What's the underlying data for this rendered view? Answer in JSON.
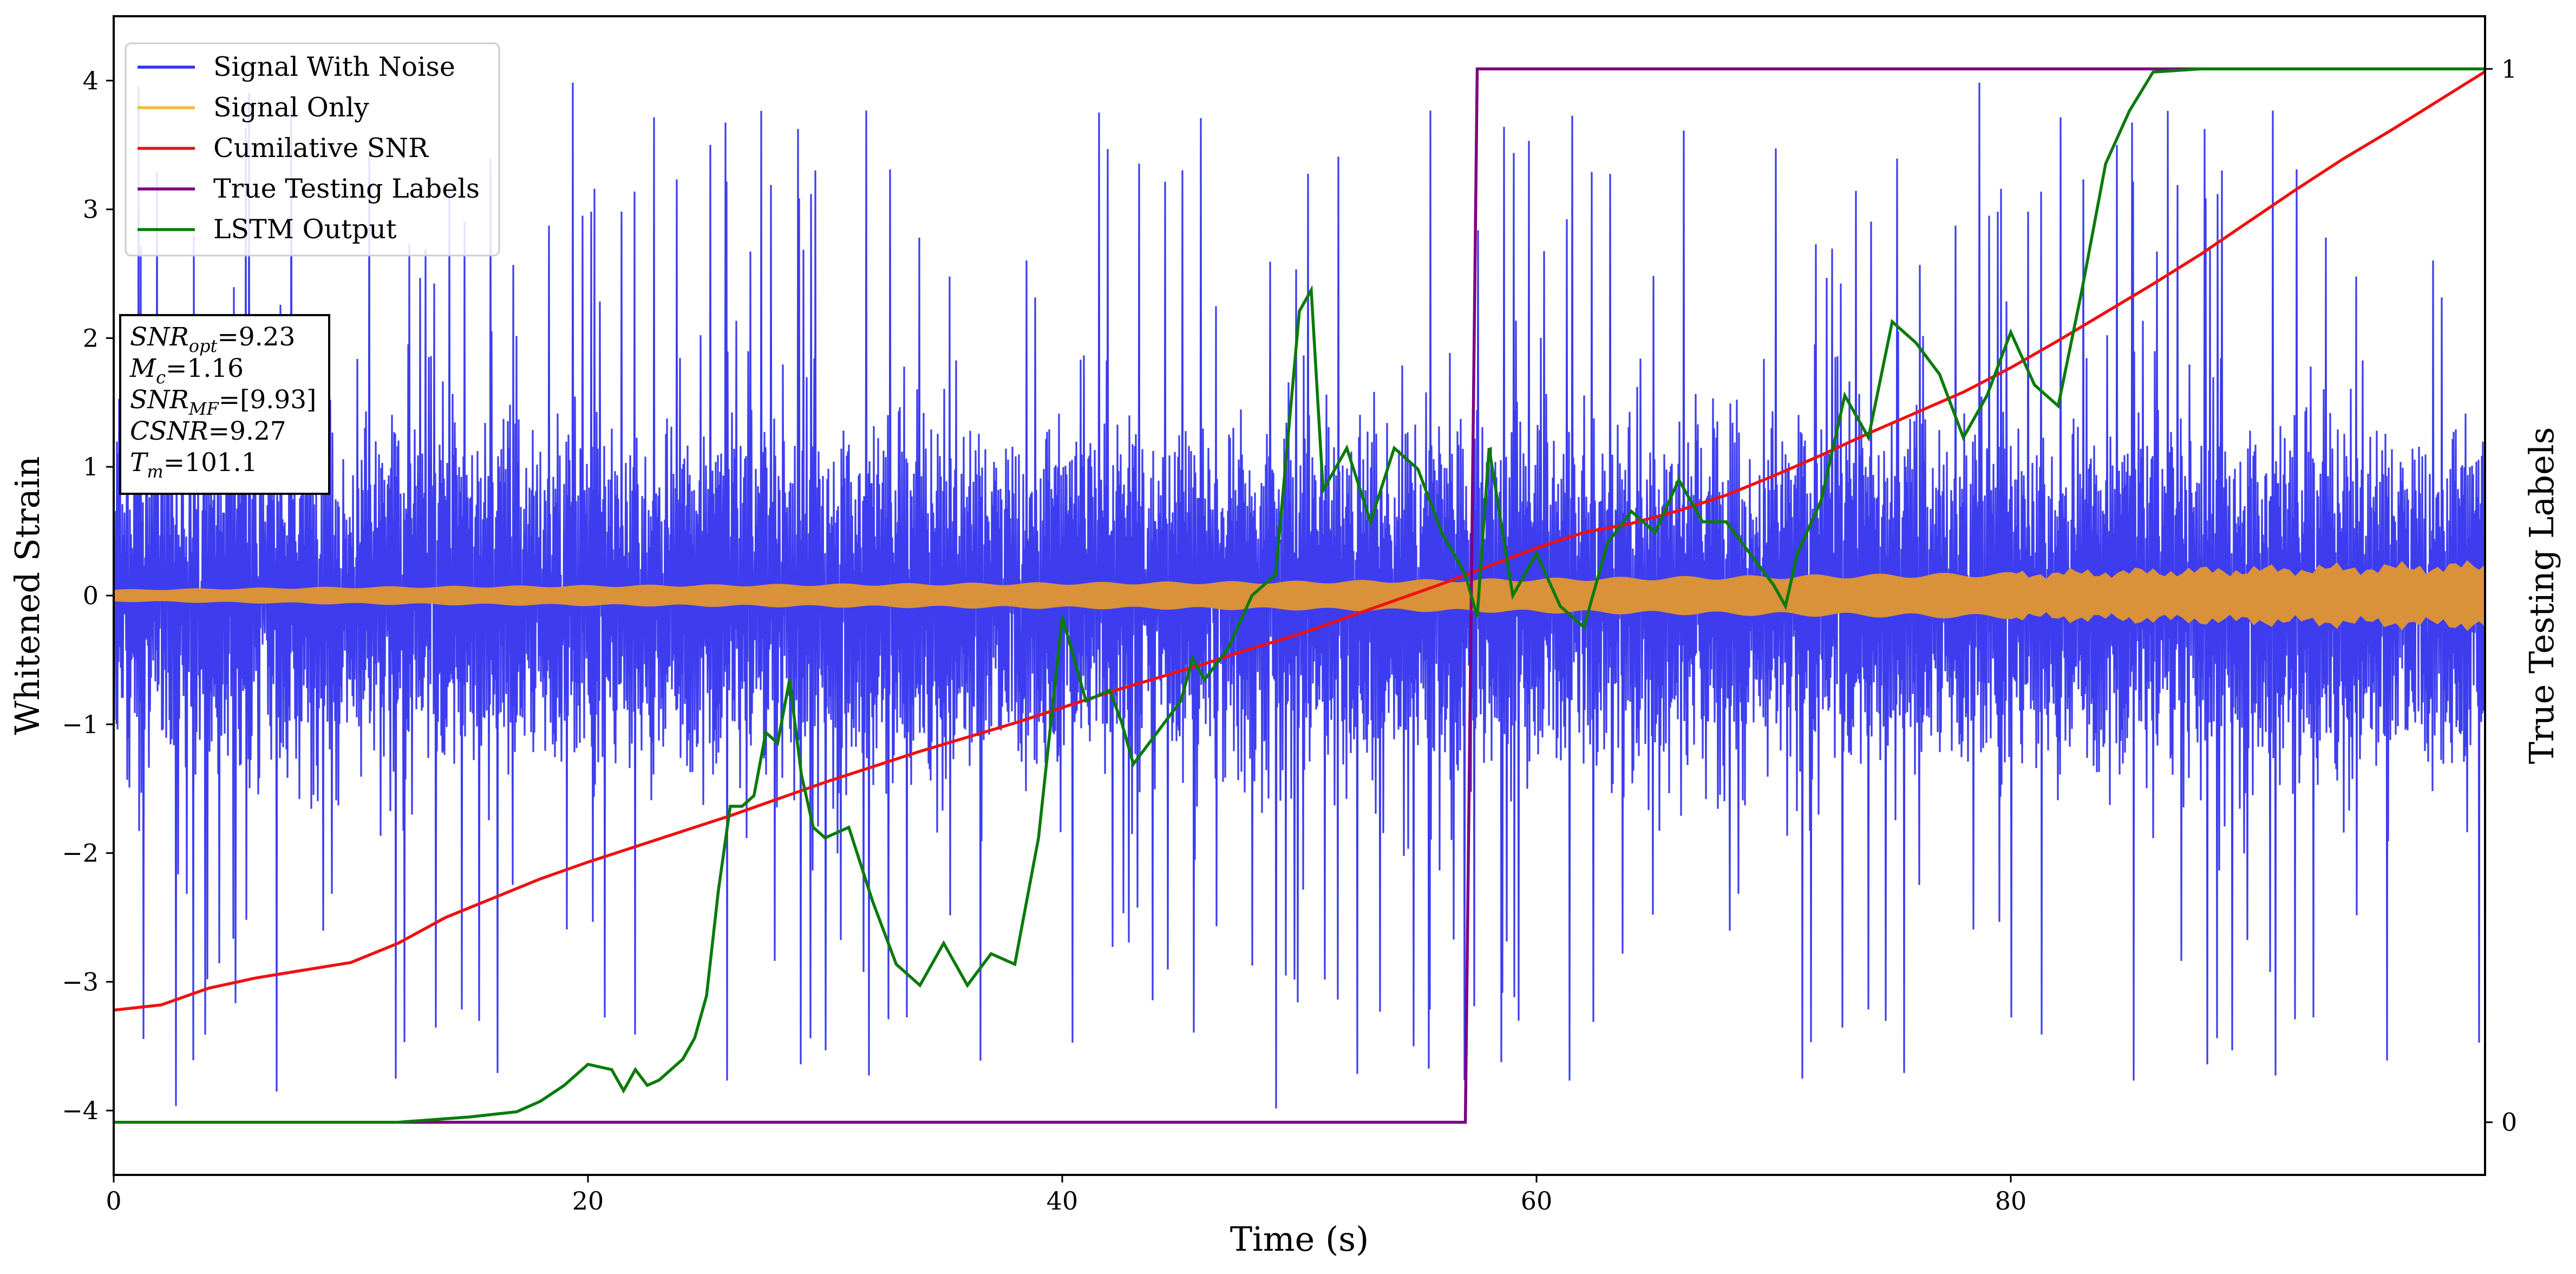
{
  "chart_data": {
    "type": "line",
    "xlabel": "Time (s)",
    "ylabel": "Whitened Strain",
    "y2label": "True Testing Labels",
    "xlim": [
      0,
      100
    ],
    "ylim": [
      -4.5,
      4.5
    ],
    "y2lim": [
      -0.05,
      1.05
    ],
    "x_ticks": [
      0,
      20,
      40,
      60,
      80
    ],
    "y_ticks": [
      -4,
      -3,
      -2,
      -1,
      0,
      1,
      2,
      3,
      4
    ],
    "y2_ticks": [
      0,
      1
    ],
    "grid": false,
    "legend_position": "top-left",
    "annotation": {
      "lines": [
        {
          "base": "SNR",
          "sub": "opt",
          "value": "=9.23"
        },
        {
          "base": "M",
          "sub": "c",
          "value": "=1.16"
        },
        {
          "base": "SNR",
          "sub": "MF",
          "value": "=[9.93]"
        },
        {
          "base": "CSNR",
          "sub": "",
          "value": "=9.27"
        },
        {
          "base": "T",
          "sub": "m",
          "value": "=101.1"
        }
      ]
    },
    "series": [
      {
        "name": "Signal With Noise",
        "axis": "left",
        "color": "#3333ee",
        "description_stats": {
          "core_band": 0.8,
          "peak_min": -4.0,
          "peak_max": 4.0
        }
      },
      {
        "name": "Signal Only",
        "axis": "left",
        "color": "#d9913a",
        "legend_color": "#f5b840",
        "envelope": {
          "x": [
            0,
            10,
            20,
            30,
            40,
            50,
            60,
            70,
            80,
            90,
            100
          ],
          "amplitude": [
            0.04,
            0.06,
            0.07,
            0.08,
            0.09,
            0.1,
            0.12,
            0.14,
            0.16,
            0.19,
            0.22
          ]
        }
      },
      {
        "name": "Cumilative SNR",
        "axis": "left",
        "color": "#ee1111",
        "x": [
          0,
          2,
          4,
          6,
          8,
          10,
          12,
          14,
          16,
          18,
          20,
          22,
          24,
          26,
          28,
          30,
          32,
          34,
          36,
          38,
          40,
          42,
          44,
          46,
          48,
          50,
          52,
          54,
          56,
          58,
          60,
          62,
          64,
          66,
          68,
          70,
          72,
          74,
          76,
          78,
          80,
          82,
          84,
          86,
          88,
          90,
          92,
          94,
          96,
          98,
          100
        ],
        "y": [
          -3.22,
          -3.18,
          -3.05,
          -2.97,
          -2.91,
          -2.85,
          -2.7,
          -2.5,
          -2.35,
          -2.2,
          -2.07,
          -1.95,
          -1.83,
          -1.71,
          -1.58,
          -1.45,
          -1.33,
          -1.21,
          -1.1,
          -0.99,
          -0.87,
          -0.75,
          -0.64,
          -0.53,
          -0.41,
          -0.3,
          -0.17,
          -0.04,
          0.09,
          0.23,
          0.37,
          0.49,
          0.56,
          0.66,
          0.78,
          0.93,
          1.09,
          1.26,
          1.42,
          1.58,
          1.77,
          1.98,
          2.2,
          2.42,
          2.65,
          2.9,
          3.15,
          3.39,
          3.61,
          3.84,
          4.07
        ]
      },
      {
        "name": "True Testing Labels",
        "axis": "right",
        "color": "#800080",
        "x": [
          0,
          57.0,
          57.5,
          100
        ],
        "y": [
          0,
          0,
          1,
          1
        ]
      },
      {
        "name": "LSTM Output",
        "axis": "right",
        "color": "#0a7a0a",
        "x": [
          0,
          12,
          15,
          17,
          18,
          19,
          20,
          21,
          21.5,
          22,
          22.5,
          23,
          24,
          24.5,
          25,
          25.5,
          26,
          26.5,
          27,
          27.5,
          28,
          28.5,
          29,
          29.5,
          30,
          31,
          32,
          33,
          34,
          35,
          36,
          37,
          38,
          39,
          40,
          41,
          42,
          42.5,
          43,
          44,
          45,
          45.5,
          46,
          47,
          48,
          49,
          50,
          50.5,
          51,
          52,
          53,
          54,
          55,
          56,
          57,
          57.5,
          58,
          59,
          60,
          61,
          62,
          63,
          64,
          65,
          66,
          67,
          68,
          69,
          70,
          70.5,
          71,
          72,
          73,
          74,
          75,
          76,
          77,
          78,
          79,
          80,
          81,
          82,
          83,
          84,
          85,
          86,
          88,
          90,
          95,
          100
        ],
        "y": [
          0.0,
          0.0,
          0.005,
          0.01,
          0.02,
          0.035,
          0.055,
          0.05,
          0.03,
          0.05,
          0.035,
          0.04,
          0.06,
          0.08,
          0.12,
          0.22,
          0.3,
          0.3,
          0.31,
          0.37,
          0.36,
          0.42,
          0.33,
          0.28,
          0.27,
          0.28,
          0.21,
          0.15,
          0.13,
          0.17,
          0.13,
          0.16,
          0.15,
          0.27,
          0.48,
          0.4,
          0.41,
          0.38,
          0.34,
          0.37,
          0.4,
          0.44,
          0.42,
          0.45,
          0.5,
          0.52,
          0.77,
          0.79,
          0.6,
          0.64,
          0.57,
          0.64,
          0.62,
          0.56,
          0.52,
          0.48,
          0.64,
          0.5,
          0.54,
          0.49,
          0.47,
          0.55,
          0.58,
          0.56,
          0.61,
          0.57,
          0.57,
          0.54,
          0.51,
          0.49,
          0.54,
          0.59,
          0.69,
          0.65,
          0.76,
          0.74,
          0.71,
          0.65,
          0.69,
          0.75,
          0.7,
          0.68,
          0.79,
          0.91,
          0.96,
          0.997,
          1.0,
          1.0,
          1.0,
          1.0
        ]
      }
    ]
  }
}
